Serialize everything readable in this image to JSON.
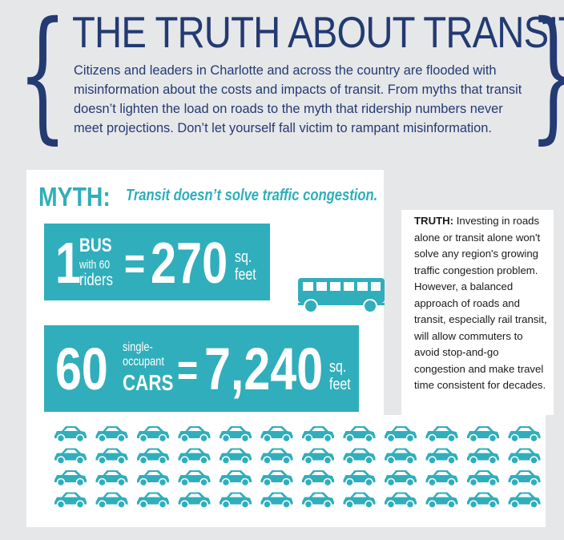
{
  "header": {
    "title": "THE TRUTH ABOUT TRANSIT",
    "intro": "Citizens and leaders in Charlotte and across the country are flooded with misinformation about the costs and impacts of transit. From myths that transit doesn’t lighten the load on roads to the myth that ridership numbers never meet projections. Don’t let yourself fall victim to rampant misinformation."
  },
  "myth": {
    "label": "MYTH:",
    "claim": "Transit doesn’t solve traffic congestion."
  },
  "truth": {
    "label": "TRUTH:",
    "text": "Investing in roads alone or transit alone won't solve any region's growing traffic congestion problem. However, a balanced approach of roads and transit, especially rail transit, will allow commuters to avoid stop-and-go congestion and make travel time consistent for decades."
  },
  "bus_stat": {
    "count": "1",
    "vehicle": "BUS",
    "riders_line1": "with 60",
    "riders_line2": "riders",
    "equals": "=",
    "area": "270",
    "unit_line1": "sq.",
    "unit_line2": "feet"
  },
  "car_stat": {
    "count": "60",
    "desc_line1": "single-",
    "desc_line2": "occupant",
    "vehicle": "CARS",
    "equals": "=",
    "area": "7,240",
    "unit_line1": "sq.",
    "unit_line2": "feet"
  },
  "colors": {
    "navy": "#233a72",
    "teal": "#30aebb",
    "background": "#e6e7e9"
  },
  "icons": {
    "bus": "bus-icon",
    "car": "car-icon"
  },
  "car_icon_count": 48
}
